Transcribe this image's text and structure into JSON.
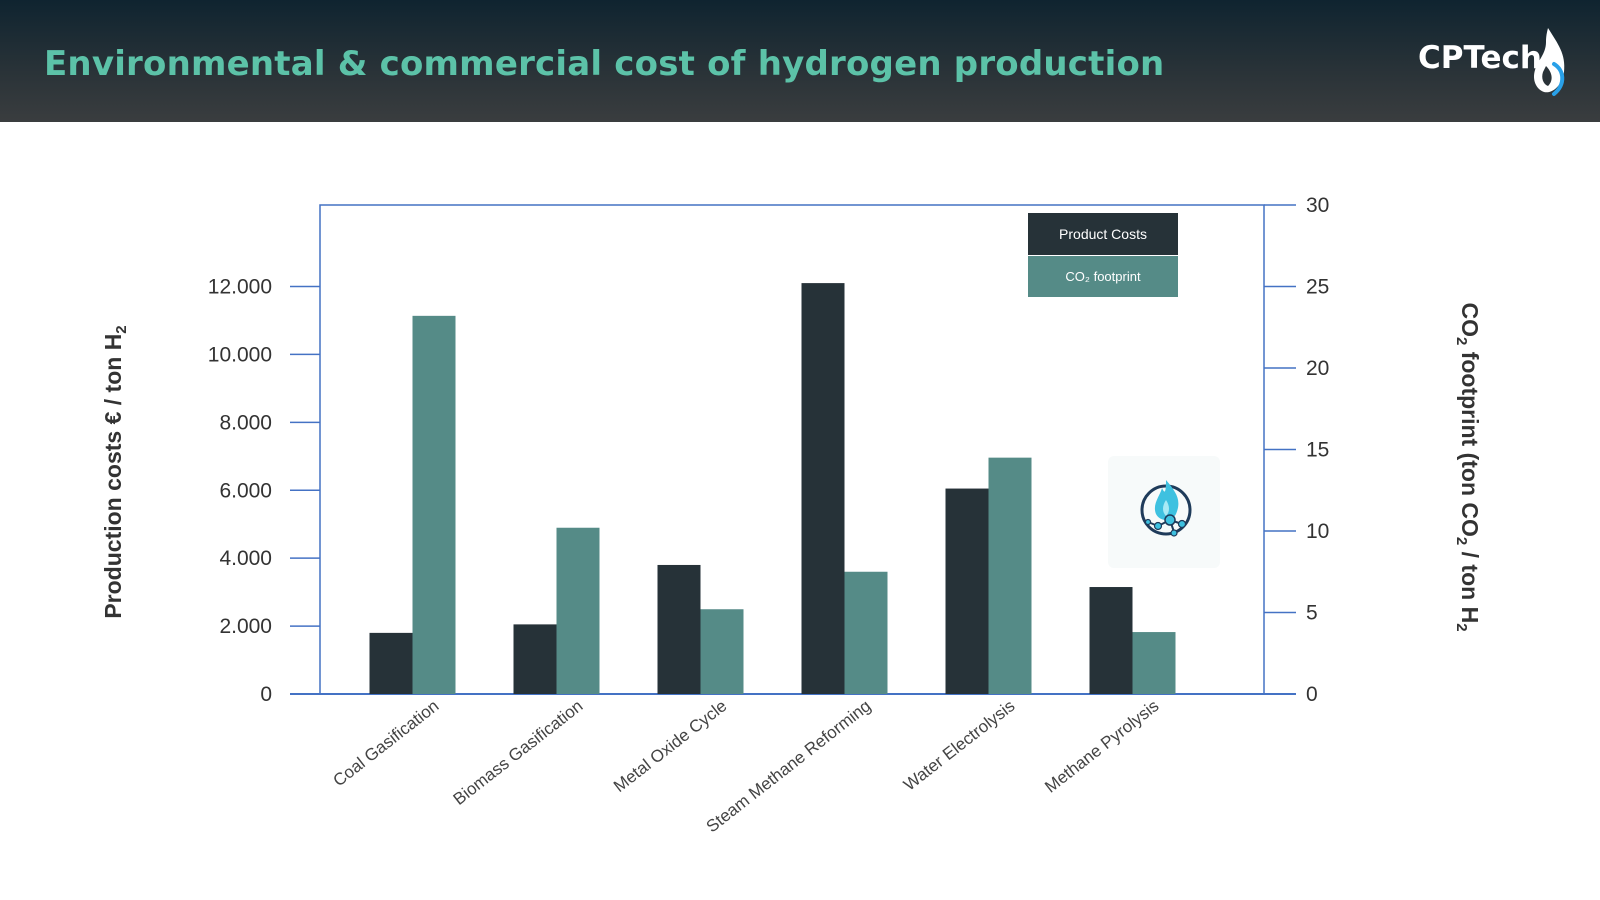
{
  "header": {
    "title": "Environmental & commercial cost of hydrogen production",
    "brand": "CPTech"
  },
  "colors": {
    "header_bg": "#2b3236",
    "title": "#5cc2a8",
    "product_costs": "#263238",
    "co2_footprint": "#558b87",
    "axis": "#4472c4"
  },
  "icons": {
    "brand_logo": "flame-droplet-icon",
    "plot_icon": "hydrogen-flame-molecule-icon"
  },
  "chart_data": {
    "type": "bar",
    "categories": [
      "Coal Gasification",
      "Biomass Gasification",
      "Metal Oxide Cycle",
      "Steam Methane Reforming",
      "Water Electrolysis",
      "Methane Pyrolysis"
    ],
    "series": [
      {
        "name": "Product Costs",
        "axis": "left",
        "values": [
          1800,
          2050,
          3800,
          12100,
          6050,
          3150
        ]
      },
      {
        "name": "CO₂ footprint",
        "axis": "right",
        "values": [
          23.2,
          10.2,
          5.2,
          7.5,
          14.5,
          3.8
        ]
      }
    ],
    "left_axis": {
      "label_main": "Production costs  € / ton H",
      "label_sub": "2",
      "ylim": [
        0,
        14400
      ],
      "ticks": [
        0,
        2000,
        4000,
        6000,
        8000,
        10000,
        12000
      ],
      "tick_labels": [
        "0",
        "2.000",
        "4.000",
        "6.000",
        "8.000",
        "10.000",
        "12.000"
      ]
    },
    "right_axis": {
      "label_parts": [
        "CO",
        "2",
        "  footprint  (ton CO",
        "2",
        " / ton H",
        "2"
      ],
      "ylim": [
        0,
        30
      ],
      "ticks": [
        0,
        5,
        10,
        15,
        20,
        25,
        30
      ],
      "tick_labels": [
        "0",
        "5",
        "10",
        "15",
        "20",
        "25",
        "30"
      ]
    },
    "legend": {
      "position": "top-right",
      "items": [
        "Product Costs",
        "CO₂  footprint"
      ]
    }
  }
}
